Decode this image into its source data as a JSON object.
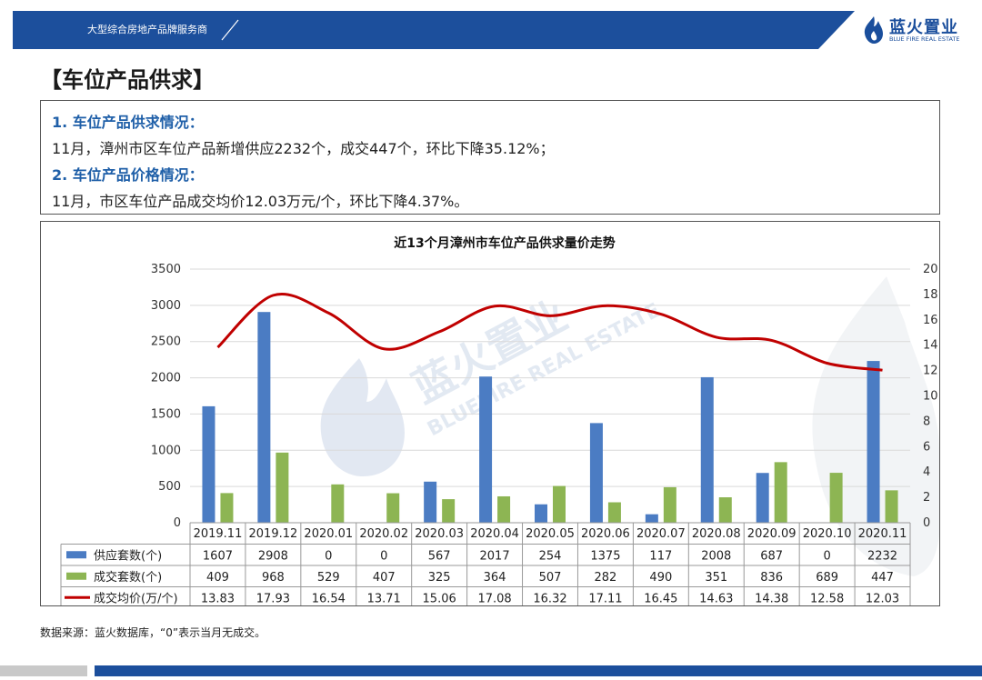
{
  "header": {
    "slogan": "大型综合房地产品牌服务商",
    "brand_name": "蓝火置业",
    "brand_sub": "BLUE FIRE REAL ESTATE"
  },
  "page_title": "【车位产品供求】",
  "summary": {
    "heading1": "1. 车位产品供求情况：",
    "text1": "11月，漳州市区车位产品新增供应2232个，成交447个，环比下降35.12%；",
    "heading2": "2. 车位产品价格情况：",
    "text2": "11月，市区车位产品成交均价12.03万元/个，环比下降4.37%。"
  },
  "chart_data": {
    "type": "bar",
    "title": "近13个月漳州市车位产品供求量价走势",
    "categories": [
      "2019.11",
      "2019.12",
      "2020.01",
      "2020.02",
      "2020.03",
      "2020.04",
      "2020.05",
      "2020.06",
      "2020.07",
      "2020.08",
      "2020.09",
      "2020.10",
      "2020.11"
    ],
    "series": [
      {
        "name": "供应套数(个)",
        "kind": "bar",
        "axis": "left",
        "color": "#4b7cc3",
        "values": [
          1607,
          2908,
          0,
          0,
          567,
          2017,
          254,
          1375,
          117,
          2008,
          687,
          0,
          2232
        ]
      },
      {
        "name": "成交套数(个)",
        "kind": "bar",
        "axis": "left",
        "color": "#8db553",
        "values": [
          409,
          968,
          529,
          407,
          325,
          364,
          507,
          282,
          490,
          351,
          836,
          689,
          447
        ]
      },
      {
        "name": "成交均价(万/个)",
        "kind": "line",
        "axis": "right",
        "color": "#c00000",
        "values": [
          13.83,
          17.93,
          16.54,
          13.71,
          15.06,
          17.08,
          16.32,
          17.11,
          16.45,
          14.63,
          14.38,
          12.58,
          12.03
        ]
      }
    ],
    "left_axis": {
      "min": 0,
      "max": 3500,
      "step": 500
    },
    "right_axis": {
      "min": 0,
      "max": 20,
      "step": 2
    },
    "grid": true,
    "legend_placement": "data-table-below",
    "watermark": {
      "name": "蓝火置业",
      "sub": "BLUEFIRE REAL ESTATE"
    }
  },
  "footer_note": "数据来源：蓝火数据库，“0”表示当月无成交。",
  "colors": {
    "brand_blue": "#1c4f9c",
    "supply": "#4b7cc3",
    "deal": "#8db553",
    "price": "#c00000"
  }
}
